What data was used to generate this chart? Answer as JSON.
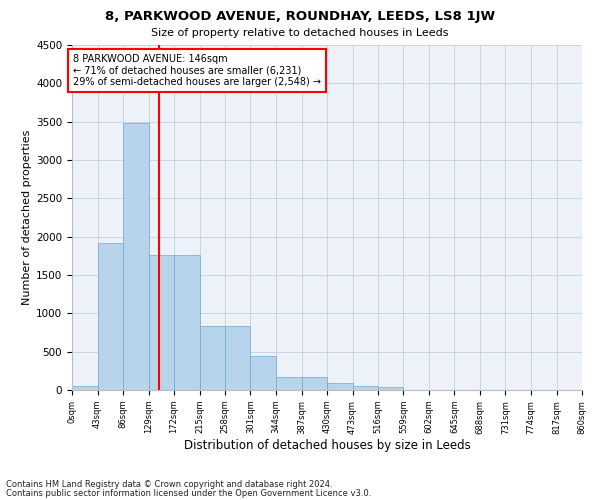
{
  "title1": "8, PARKWOOD AVENUE, ROUNDHAY, LEEDS, LS8 1JW",
  "title2": "Size of property relative to detached houses in Leeds",
  "xlabel": "Distribution of detached houses by size in Leeds",
  "ylabel": "Number of detached properties",
  "bar_values": [
    50,
    1920,
    3480,
    1760,
    1760,
    840,
    840,
    450,
    170,
    170,
    95,
    50,
    40,
    0,
    0,
    0,
    0,
    0,
    0,
    0
  ],
  "bar_edges": [
    0,
    43,
    86,
    129,
    172,
    215,
    258,
    301,
    344,
    387,
    430,
    473,
    516,
    559,
    602,
    645,
    688,
    731,
    774,
    817,
    860
  ],
  "tick_labels": [
    "0sqm",
    "43sqm",
    "86sqm",
    "129sqm",
    "172sqm",
    "215sqm",
    "258sqm",
    "301sqm",
    "344sqm",
    "387sqm",
    "430sqm",
    "473sqm",
    "516sqm",
    "559sqm",
    "602sqm",
    "645sqm",
    "688sqm",
    "731sqm",
    "774sqm",
    "817sqm",
    "860sqm"
  ],
  "property_size": 146,
  "vline_x": 146,
  "bar_color": "#b8d4ea",
  "bar_edgecolor": "#6aaad4",
  "vline_color": "red",
  "ylim": [
    0,
    4500
  ],
  "yticks": [
    0,
    500,
    1000,
    1500,
    2000,
    2500,
    3000,
    3500,
    4000,
    4500
  ],
  "grid_color": "#c8d4e4",
  "bg_color": "#edf2f8",
  "annotation_text": "8 PARKWOOD AVENUE: 146sqm\n← 71% of detached houses are smaller (6,231)\n29% of semi-detached houses are larger (2,548) →",
  "annotation_box_color": "white",
  "annotation_box_edgecolor": "red",
  "footer1": "Contains HM Land Registry data © Crown copyright and database right 2024.",
  "footer2": "Contains public sector information licensed under the Open Government Licence v3.0.",
  "title1_fontsize": 9.5,
  "title2_fontsize": 8,
  "ylabel_fontsize": 8,
  "xlabel_fontsize": 8.5,
  "footer_fontsize": 6,
  "ytick_fontsize": 7.5,
  "xtick_fontsize": 6
}
